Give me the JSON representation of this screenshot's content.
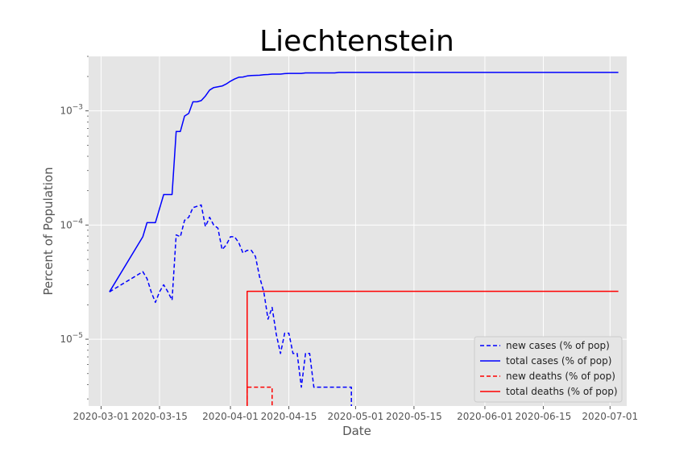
{
  "chart_data": {
    "type": "line",
    "title": "Liechtenstein",
    "xlabel": "Date",
    "ylabel": "Percent of Population",
    "yscale": "log",
    "ylim": [
      2.6e-06,
      0.003
    ],
    "xlim": [
      "2020-02-27",
      "2020-07-05"
    ],
    "grid": true,
    "legend_position": "lower-right",
    "x_ticks": [
      "2020-03-01",
      "2020-03-15",
      "2020-04-01",
      "2020-04-15",
      "2020-05-01",
      "2020-05-15",
      "2020-06-01",
      "2020-06-15",
      "2020-07-01"
    ],
    "y_ticks": [
      {
        "value": 1e-05,
        "label": "10^-5"
      },
      {
        "value": 0.0001,
        "label": "10^-4"
      },
      {
        "value": 0.001,
        "label": "10^-3"
      }
    ],
    "series": [
      {
        "name": "new cases (% of pop)",
        "color": "#0000ff",
        "dash": "dashed",
        "points": [
          [
            "2020-03-03",
            2.6e-05
          ],
          [
            "2020-03-11",
            3.9e-05
          ],
          [
            "2020-03-12",
            3.4e-05
          ],
          [
            "2020-03-13",
            2.6e-05
          ],
          [
            "2020-03-14",
            2.1e-05
          ],
          [
            "2020-03-15",
            2.6e-05
          ],
          [
            "2020-03-16",
            3e-05
          ],
          [
            "2020-03-17",
            2.6e-05
          ],
          [
            "2020-03-18",
            2.2e-05
          ],
          [
            "2020-03-19",
            8.2e-05
          ],
          [
            "2020-03-20",
            7.9e-05
          ],
          [
            "2020-03-21",
            0.00011
          ],
          [
            "2020-03-22",
            0.000117
          ],
          [
            "2020-03-23",
            0.000142
          ],
          [
            "2020-03-25",
            0.00015
          ],
          [
            "2020-03-26",
            9.7e-05
          ],
          [
            "2020-03-27",
            0.000117
          ],
          [
            "2020-03-28",
            0.0001
          ],
          [
            "2020-03-29",
            9.4e-05
          ],
          [
            "2020-03-30",
            6.1e-05
          ],
          [
            "2020-03-31",
            6.7e-05
          ],
          [
            "2020-04-01",
            7.9e-05
          ],
          [
            "2020-04-02",
            7.9e-05
          ],
          [
            "2020-04-03",
            7e-05
          ],
          [
            "2020-04-04",
            5.7e-05
          ],
          [
            "2020-04-05",
            6e-05
          ],
          [
            "2020-04-06",
            6e-05
          ],
          [
            "2020-04-07",
            5.3e-05
          ],
          [
            "2020-04-08",
            3.5e-05
          ],
          [
            "2020-04-09",
            2.6e-05
          ],
          [
            "2020-04-10",
            1.5e-05
          ],
          [
            "2020-04-11",
            1.9e-05
          ],
          [
            "2020-04-12",
            1.1e-05
          ],
          [
            "2020-04-13",
            7.5e-06
          ],
          [
            "2020-04-14",
            1.13e-05
          ],
          [
            "2020-04-15",
            1.13e-05
          ],
          [
            "2020-04-16",
            7.5e-06
          ],
          [
            "2020-04-17",
            7.5e-06
          ],
          [
            "2020-04-18",
            3.8e-06
          ],
          [
            "2020-04-19",
            7.5e-06
          ],
          [
            "2020-04-20",
            7.5e-06
          ],
          [
            "2020-04-21",
            3.8e-06
          ],
          [
            "2020-04-30",
            3.8e-06
          ],
          [
            "2020-04-30",
            2e-06
          ]
        ]
      },
      {
        "name": "total cases (% of pop)",
        "color": "#0000ff",
        "dash": "solid",
        "points": [
          [
            "2020-03-03",
            2.6e-05
          ],
          [
            "2020-03-11",
            7.9e-05
          ],
          [
            "2020-03-12",
            0.000105
          ],
          [
            "2020-03-14",
            0.000105
          ],
          [
            "2020-03-16",
            0.000185
          ],
          [
            "2020-03-18",
            0.000185
          ],
          [
            "2020-03-19",
            0.00066
          ],
          [
            "2020-03-20",
            0.00066
          ],
          [
            "2020-03-21",
            0.0009
          ],
          [
            "2020-03-22",
            0.00095
          ],
          [
            "2020-03-23",
            0.0012
          ],
          [
            "2020-03-24",
            0.0012
          ],
          [
            "2020-03-25",
            0.00123
          ],
          [
            "2020-03-26",
            0.00135
          ],
          [
            "2020-03-27",
            0.00152
          ],
          [
            "2020-03-28",
            0.0016
          ],
          [
            "2020-03-30",
            0.00165
          ],
          [
            "2020-03-31",
            0.00172
          ],
          [
            "2020-04-01",
            0.00182
          ],
          [
            "2020-04-02",
            0.0019
          ],
          [
            "2020-04-03",
            0.00197
          ],
          [
            "2020-04-04",
            0.00198
          ],
          [
            "2020-04-05",
            0.00202
          ],
          [
            "2020-04-06",
            0.00204
          ],
          [
            "2020-04-08",
            0.00205
          ],
          [
            "2020-04-09",
            0.00207
          ],
          [
            "2020-04-10",
            0.00208
          ],
          [
            "2020-04-11",
            0.0021
          ],
          [
            "2020-04-13",
            0.0021
          ],
          [
            "2020-04-14",
            0.00212
          ],
          [
            "2020-04-15",
            0.00213
          ],
          [
            "2020-04-18",
            0.00213
          ],
          [
            "2020-04-19",
            0.00215
          ],
          [
            "2020-04-26",
            0.00215
          ],
          [
            "2020-04-27",
            0.00217
          ],
          [
            "2020-07-03",
            0.00217
          ]
        ]
      },
      {
        "name": "new deaths (% of pop)",
        "color": "#ff0000",
        "dash": "dashed",
        "points": [
          [
            "2020-04-05",
            2e-06
          ],
          [
            "2020-04-05",
            3.8e-06
          ],
          [
            "2020-04-11",
            3.8e-06
          ],
          [
            "2020-04-11",
            2e-06
          ]
        ]
      },
      {
        "name": "total deaths (% of pop)",
        "color": "#ff0000",
        "dash": "solid",
        "points": [
          [
            "2020-04-05",
            2e-06
          ],
          [
            "2020-04-05",
            2.63e-05
          ],
          [
            "2020-07-03",
            2.63e-05
          ]
        ]
      }
    ]
  }
}
